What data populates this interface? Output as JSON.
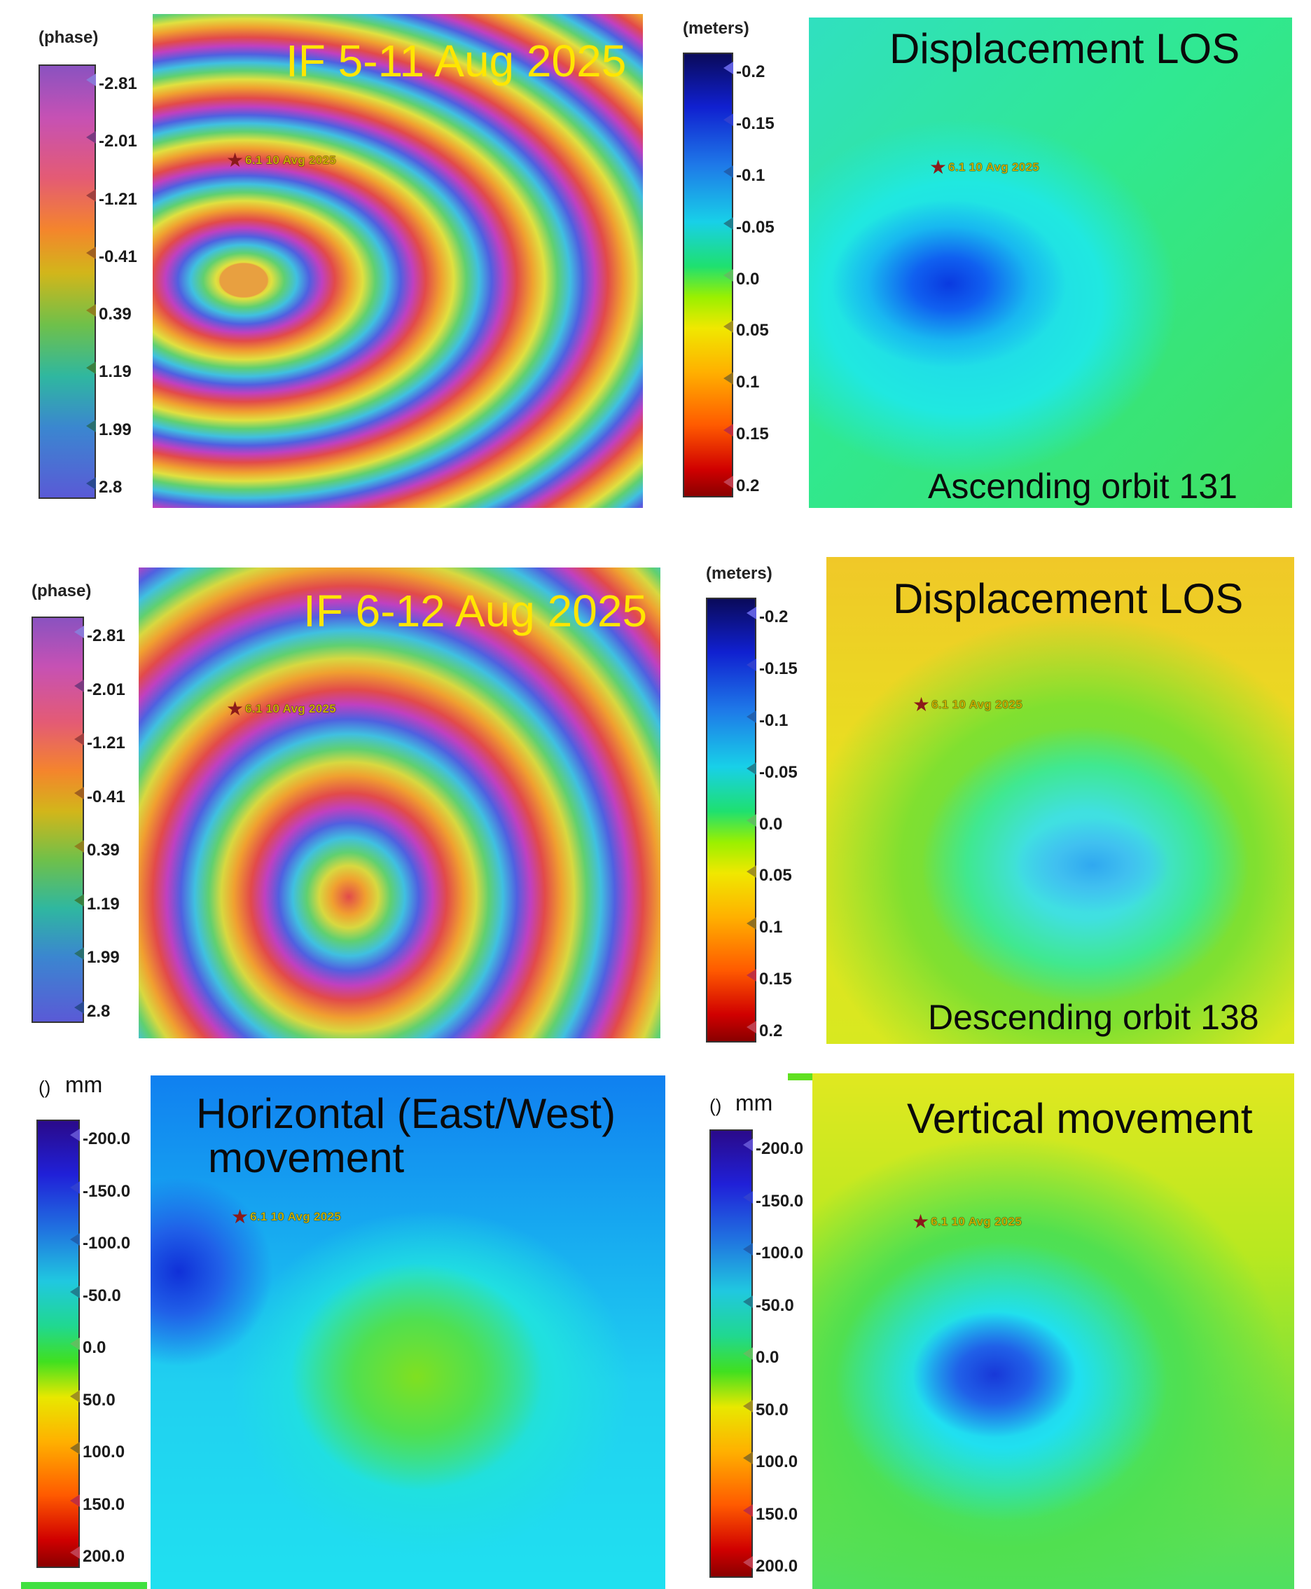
{
  "colors": {
    "accent_yellow": "#ffe600",
    "text_black": "#0a0a0a",
    "epicenter_star": "#8b1a1a"
  },
  "panels": {
    "if1": {
      "title": "IF 5-11 Aug 2025",
      "epicenter_label": "6.1 10 Avg 2025",
      "colorbar": {
        "title": "(phase)",
        "ticks": [
          "-2.81",
          "-2.01",
          "-1.21",
          "-0.41",
          "0.39",
          "1.19",
          "1.99",
          "2.8"
        ]
      }
    },
    "los_asc": {
      "title": "Displacement LOS",
      "subtitle": "Ascending orbit 131",
      "epicenter_label": "6.1 10 Avg 2025",
      "colorbar": {
        "title": "(meters)",
        "ticks": [
          "-0.2",
          "-0.15",
          "-0.1",
          "-0.05",
          "0.0",
          "0.05",
          "0.1",
          "0.15",
          "0.2"
        ]
      }
    },
    "if2": {
      "title": "IF 6-12 Aug 2025",
      "epicenter_label": "6.1 10 Avg 2025",
      "colorbar": {
        "title": "(phase)",
        "ticks": [
          "-2.81",
          "-2.01",
          "-1.21",
          "-0.41",
          "0.39",
          "1.19",
          "1.99",
          "2.8"
        ]
      }
    },
    "los_desc": {
      "title": "Displacement LOS",
      "subtitle": "Descending orbit 138",
      "epicenter_label": "6.1 10 Avg 2025",
      "colorbar": {
        "title": "(meters)",
        "ticks": [
          "-0.2",
          "-0.15",
          "-0.1",
          "-0.05",
          "0.0",
          "0.05",
          "0.1",
          "0.15",
          "0.2"
        ]
      }
    },
    "horizontal": {
      "title_line1": "Horizontal (East/West)",
      "title_line2": "movement",
      "epicenter_label": "6.1 10 Avg 2025",
      "colorbar": {
        "title": "()",
        "unit": "mm",
        "ticks": [
          "-200.0",
          "-150.0",
          "-100.0",
          "-50.0",
          "0.0",
          "50.0",
          "100.0",
          "150.0",
          "200.0"
        ]
      }
    },
    "vertical": {
      "title": "Vertical movement",
      "epicenter_label": "6.1 10 Avg 2025",
      "colorbar": {
        "title": "()",
        "unit": "mm",
        "ticks": [
          "-200.0",
          "-150.0",
          "-100.0",
          "-50.0",
          "0.0",
          "50.0",
          "100.0",
          "150.0",
          "200.0"
        ]
      }
    }
  }
}
